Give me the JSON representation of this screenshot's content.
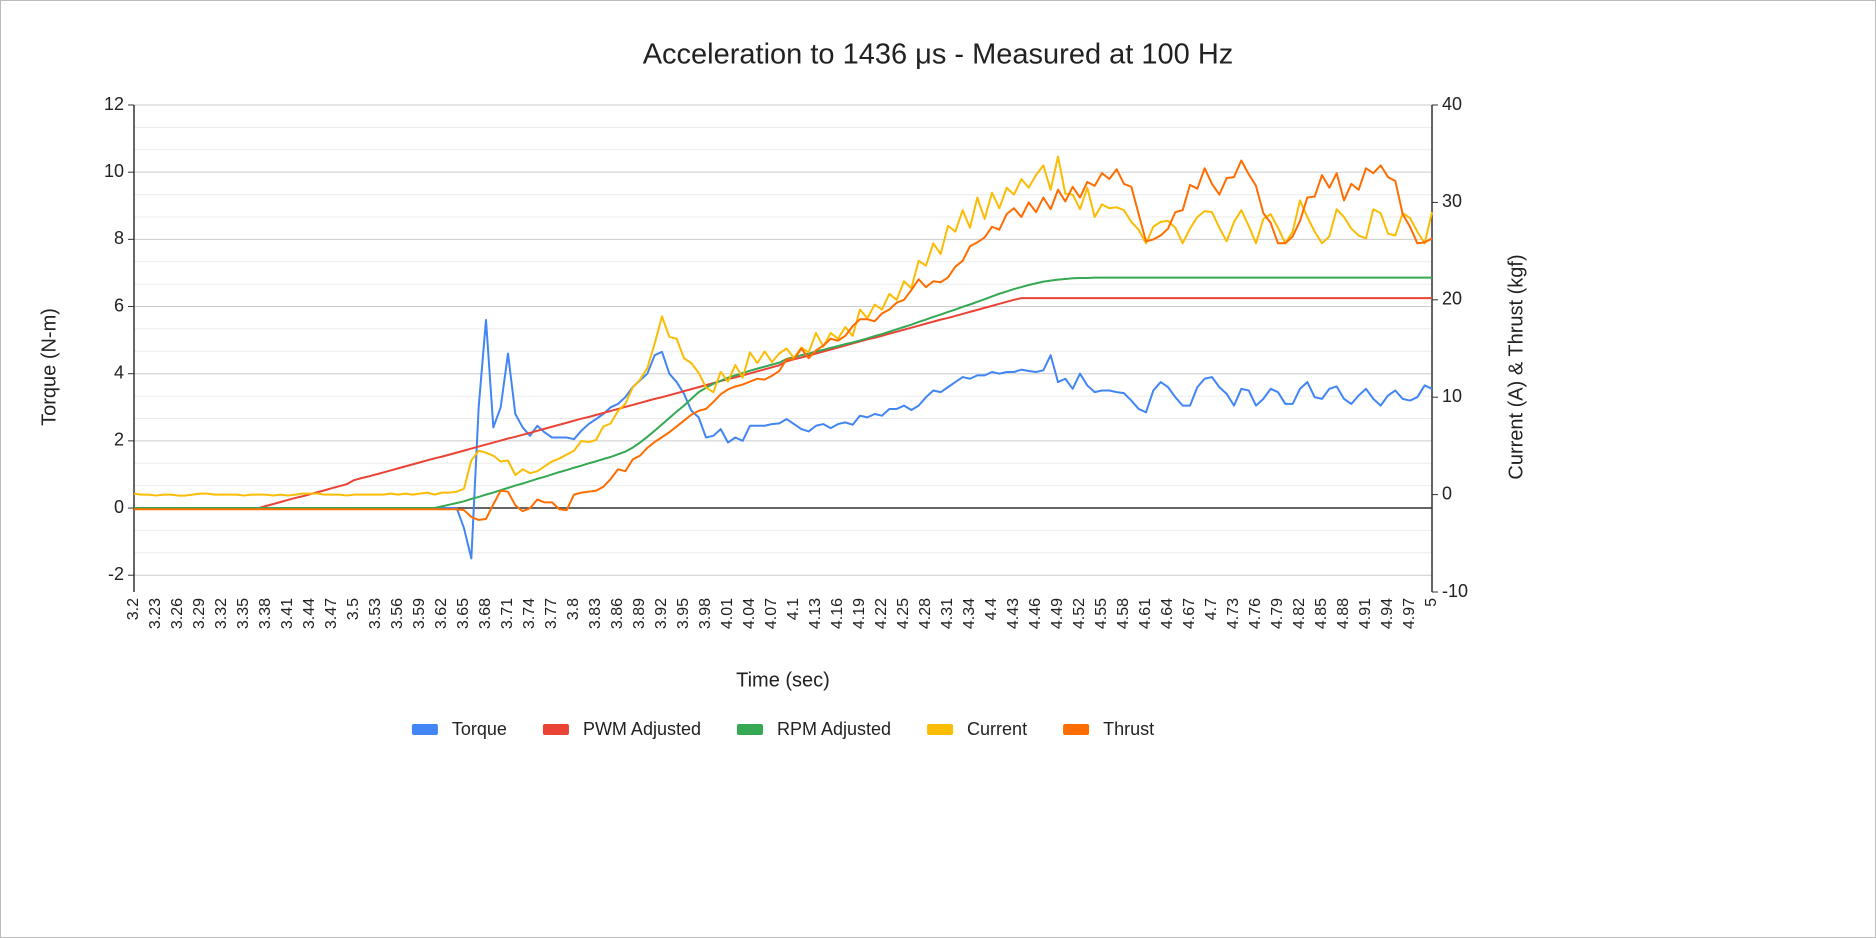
{
  "chart_data": {
    "type": "line",
    "title": "Acceleration to 1436 μs - Measured at 100 Hz",
    "x_label": "Time (sec)",
    "y_label": "Torque (N-m)",
    "y2_label": "Current (A) & Thrust (kgf)",
    "categories": [
      "3.2",
      null,
      null,
      "3.23",
      null,
      null,
      "3.26",
      null,
      null,
      "3.29",
      null,
      null,
      "3.32",
      null,
      null,
      "3.35",
      null,
      null,
      "3.38",
      null,
      null,
      "3.41",
      null,
      null,
      "3.44",
      null,
      null,
      "3.47",
      null,
      null,
      "3.5",
      null,
      null,
      "3.53",
      null,
      null,
      "3.56",
      null,
      null,
      "3.59",
      null,
      null,
      "3.62",
      null,
      null,
      "3.65",
      null,
      null,
      "3.68",
      null,
      null,
      "3.71",
      null,
      null,
      "3.74",
      null,
      null,
      "3.77",
      null,
      null,
      "3.8",
      null,
      null,
      "3.83",
      null,
      null,
      "3.86",
      null,
      null,
      "3.89",
      null,
      null,
      "3.92",
      null,
      null,
      "3.95",
      null,
      null,
      "3.98",
      null,
      null,
      "4.01",
      null,
      null,
      "4.04",
      null,
      null,
      "4.07",
      null,
      null,
      "4.1",
      null,
      null,
      "4.13",
      null,
      null,
      "4.16",
      null,
      null,
      "4.19",
      null,
      null,
      "4.22",
      null,
      null,
      "4.25",
      null,
      null,
      "4.28",
      null,
      null,
      "4.31",
      null,
      null,
      "4.34",
      null,
      null,
      "4.4",
      null,
      null,
      "4.43",
      null,
      null,
      "4.46",
      null,
      null,
      "4.49",
      null,
      null,
      "4.52",
      null,
      null,
      "4.55",
      null,
      null,
      "4.58",
      null,
      null,
      "4.61",
      null,
      null,
      "4.64",
      null,
      null,
      "4.67",
      null,
      null,
      "4.7",
      null,
      null,
      "4.73",
      null,
      null,
      "4.76",
      null,
      null,
      "4.79",
      null,
      null,
      "4.82",
      null,
      null,
      "4.85",
      null,
      null,
      "4.88",
      null,
      null,
      "4.91",
      null,
      null,
      "4.94",
      null,
      null,
      "4.97",
      null,
      null,
      "5"
    ],
    "ylim": [
      -2.5,
      12
    ],
    "yticks": [
      -2,
      0,
      2,
      4,
      6,
      8,
      10,
      12
    ],
    "y2lim": [
      -10,
      40
    ],
    "y2ticks": [
      -10,
      0,
      10,
      20,
      30,
      40
    ],
    "grid": true,
    "legend": "bottom",
    "series": [
      {
        "name": "Torque",
        "color": "#4285f4",
        "values": [
          0,
          0,
          0,
          0,
          0,
          0,
          0,
          0,
          0,
          0,
          0,
          0,
          0,
          0,
          0,
          0,
          0,
          0,
          0,
          0,
          0,
          0,
          0,
          0,
          0,
          0,
          0,
          0,
          0,
          0,
          0,
          0,
          0,
          0,
          0,
          0,
          0,
          0,
          0,
          0,
          0,
          0,
          0,
          0,
          0,
          -0.6,
          -1.5,
          3,
          5.6,
          2.4,
          3,
          4.6,
          2.8,
          2.4,
          2.15,
          2.45,
          2.25,
          2.1,
          2.1,
          2.1,
          2.05,
          2.3,
          2.5,
          2.65,
          2.8,
          3,
          3.1,
          3.3,
          3.6,
          3.8,
          4,
          4.55,
          4.65,
          4,
          3.75,
          3.4,
          2.9,
          2.7,
          2.1,
          2.15,
          2.35,
          1.95,
          2.1,
          2,
          2.45,
          2.45,
          2.45,
          2.5,
          2.52,
          2.65,
          2.5,
          2.35,
          2.28,
          2.45,
          2.5,
          2.38,
          2.5,
          2.55,
          2.48,
          2.75,
          2.7,
          2.8,
          2.75,
          2.95,
          2.95,
          3.05,
          2.92,
          3.05,
          3.3,
          3.5,
          3.45,
          3.6,
          3.75,
          3.9,
          3.85,
          3.95,
          3.95,
          4.05,
          4,
          4.05,
          4.05,
          4.12,
          4.08,
          4.05,
          4.1,
          4.55,
          3.75,
          3.85,
          3.55,
          4,
          3.65,
          3.45,
          3.5,
          3.5,
          3.45,
          3.42,
          3.2,
          2.95,
          2.85,
          3.5,
          3.75,
          3.6,
          3.3,
          3.05,
          3.05,
          3.6,
          3.85,
          3.9,
          3.6,
          3.4,
          3.05,
          3.55,
          3.5,
          3.05,
          3.25,
          3.55,
          3.45,
          3.1,
          3.1,
          3.55,
          3.75,
          3.3,
          3.25,
          3.55,
          3.62,
          3.25,
          3.1,
          3.35,
          3.55,
          3.25,
          3.05,
          3.35,
          3.5,
          3.25,
          3.2,
          3.3,
          3.65,
          3.55
        ]
      },
      {
        "name": "PWM Adjusted",
        "color": "#ea4335",
        "values": [
          0,
          0,
          0,
          0,
          0,
          0,
          0,
          0,
          0,
          0,
          0,
          0,
          0,
          0,
          0,
          0,
          0,
          0,
          0.06,
          0.12,
          0.18,
          0.24,
          0.3,
          0.35,
          0.41,
          0.47,
          0.53,
          0.59,
          0.65,
          0.71,
          0.83,
          0.89,
          0.94,
          1,
          1.06,
          1.12,
          1.18,
          1.24,
          1.3,
          1.36,
          1.42,
          1.48,
          1.53,
          1.59,
          1.65,
          1.71,
          1.77,
          1.83,
          1.89,
          1.95,
          2.01,
          2.07,
          2.12,
          2.18,
          2.24,
          2.3,
          2.36,
          2.42,
          2.48,
          2.54,
          2.6,
          2.66,
          2.71,
          2.77,
          2.83,
          2.89,
          2.95,
          3.01,
          3.07,
          3.13,
          3.19,
          3.25,
          3.3,
          3.36,
          3.42,
          3.48,
          3.54,
          3.6,
          3.66,
          3.72,
          3.78,
          3.84,
          3.89,
          3.95,
          4.01,
          4.07,
          4.13,
          4.19,
          4.25,
          4.37,
          4.43,
          4.48,
          4.54,
          4.6,
          4.66,
          4.72,
          4.78,
          4.84,
          4.9,
          4.96,
          5.02,
          5.07,
          5.13,
          5.19,
          5.25,
          5.31,
          5.37,
          5.43,
          5.49,
          5.55,
          5.61,
          5.66,
          5.72,
          5.78,
          5.84,
          5.9,
          5.96,
          6.02,
          6.08,
          6.14,
          6.2,
          6.25,
          6.25,
          6.25,
          6.25,
          6.25,
          6.25,
          6.25,
          6.25,
          6.25,
          6.25,
          6.25,
          6.25,
          6.25,
          6.25,
          6.25,
          6.25,
          6.25,
          6.25,
          6.25,
          6.25,
          6.25,
          6.25,
          6.25,
          6.25,
          6.25,
          6.25,
          6.25,
          6.25,
          6.25,
          6.25,
          6.25,
          6.25,
          6.25,
          6.25,
          6.25,
          6.25,
          6.25,
          6.25,
          6.25,
          6.25,
          6.25,
          6.25,
          6.25,
          6.25,
          6.25,
          6.25,
          6.25,
          6.25,
          6.25,
          6.25,
          6.25,
          6.25,
          6.25,
          6.25,
          6.25,
          6.25,
          6.25
        ]
      },
      {
        "name": "RPM Adjusted",
        "color": "#34a853",
        "values": [
          0,
          0,
          0,
          0,
          0,
          0,
          0,
          0,
          0,
          0,
          0,
          0,
          0,
          0,
          0,
          0,
          0,
          0,
          0,
          0,
          0,
          0,
          0,
          0,
          0,
          0,
          0,
          0,
          0,
          0,
          0,
          0,
          0,
          0,
          0,
          0,
          0,
          0,
          0,
          0,
          0,
          0,
          0.05,
          0.1,
          0.15,
          0.2,
          0.27,
          0.33,
          0.4,
          0.46,
          0.53,
          0.6,
          0.67,
          0.73,
          0.8,
          0.87,
          0.93,
          1,
          1.07,
          1.13,
          1.2,
          1.26,
          1.33,
          1.39,
          1.46,
          1.52,
          1.6,
          1.68,
          1.8,
          1.95,
          2.12,
          2.3,
          2.49,
          2.68,
          2.87,
          3.05,
          3.25,
          3.45,
          3.58,
          3.7,
          3.79,
          3.88,
          3.95,
          4.02,
          4.09,
          4.15,
          4.21,
          4.27,
          4.33,
          4.44,
          4.49,
          4.55,
          4.6,
          4.66,
          4.71,
          4.77,
          4.82,
          4.88,
          4.93,
          4.99,
          5.05,
          5.12,
          5.18,
          5.25,
          5.32,
          5.39,
          5.46,
          5.54,
          5.61,
          5.69,
          5.76,
          5.84,
          5.91,
          5.99,
          6.06,
          6.14,
          6.22,
          6.3,
          6.38,
          6.45,
          6.52,
          6.58,
          6.64,
          6.69,
          6.74,
          6.77,
          6.8,
          6.82,
          6.84,
          6.85,
          6.85,
          6.86,
          6.86,
          6.86,
          6.86,
          6.86,
          6.86,
          6.86,
          6.86,
          6.86,
          6.86,
          6.86,
          6.86,
          6.86,
          6.86,
          6.86,
          6.86,
          6.86,
          6.86,
          6.86,
          6.86,
          6.86,
          6.86,
          6.86,
          6.86,
          6.86,
          6.86,
          6.86,
          6.86,
          6.86,
          6.86,
          6.86,
          6.86,
          6.86,
          6.86,
          6.86,
          6.86,
          6.86,
          6.86,
          6.86,
          6.86,
          6.86,
          6.86,
          6.86,
          6.86,
          6.86,
          6.86,
          6.86
        ]
      },
      {
        "name": "Current",
        "color": "#fbbc04",
        "axis": "y2",
        "values": [
          0.1,
          0,
          0,
          -0.1,
          0,
          0,
          -0.1,
          -0.1,
          0,
          0.1,
          0.1,
          0,
          0,
          0,
          0,
          -0.1,
          0,
          0,
          0,
          -0.1,
          0,
          -0.1,
          0,
          0.1,
          0.1,
          0.1,
          0,
          0,
          0,
          -0.1,
          0,
          0,
          0,
          0,
          0,
          0.1,
          0,
          0.1,
          0,
          0.1,
          0.2,
          0,
          0.2,
          0.2,
          0.3,
          0.6,
          3.5,
          4.5,
          4.3,
          4,
          3.4,
          3.5,
          2,
          2.6,
          2.2,
          2.4,
          2.9,
          3.4,
          3.7,
          4.1,
          4.5,
          5.5,
          5.4,
          5.6,
          7,
          7.3,
          8.6,
          9.3,
          11,
          11.8,
          13,
          15.5,
          18.3,
          16.2,
          16,
          14,
          13.5,
          12.5,
          11,
          10.5,
          12.6,
          11.6,
          13.3,
          12,
          14.6,
          13.5,
          14.7,
          13.6,
          14.5,
          15,
          14,
          15.1,
          14.6,
          16.6,
          15.2,
          16.6,
          16,
          17.2,
          16.3,
          19,
          18.1,
          19.5,
          19,
          20.6,
          20,
          21.9,
          21.2,
          24,
          23.5,
          25.8,
          24.7,
          27.6,
          27,
          29.2,
          27.4,
          30.5,
          28.3,
          31,
          29.4,
          31.5,
          30.8,
          32.4,
          31.5,
          32.8,
          33.8,
          31.3,
          34.7,
          30.9,
          30.8,
          29.3,
          31.5,
          28.5,
          29.8,
          29.4,
          29.5,
          29.2,
          28,
          27.2,
          25.8,
          27.5,
          28,
          28.1,
          27.4,
          25.8,
          27.3,
          28.5,
          29.1,
          29,
          27.4,
          26,
          28,
          29.2,
          27.6,
          25.8,
          28.3,
          28.8,
          27.4,
          25.8,
          27,
          30.2,
          28.5,
          27,
          25.8,
          26.5,
          29.3,
          28.5,
          27.3,
          26.6,
          26.3,
          29.3,
          28.9,
          26.8,
          26.6,
          28.9,
          28.4,
          27,
          25.8,
          29
        ]
      },
      {
        "name": "Thrust",
        "color": "#ff6d01",
        "axis": "y2",
        "values": [
          -1.5,
          -1.5,
          -1.5,
          -1.5,
          -1.5,
          -1.5,
          -1.5,
          -1.5,
          -1.5,
          -1.5,
          -1.5,
          -1.5,
          -1.5,
          -1.5,
          -1.5,
          -1.5,
          -1.5,
          -1.5,
          -1.5,
          -1.5,
          -1.5,
          -1.5,
          -1.5,
          -1.5,
          -1.5,
          -1.5,
          -1.5,
          -1.5,
          -1.5,
          -1.5,
          -1.5,
          -1.5,
          -1.5,
          -1.5,
          -1.5,
          -1.5,
          -1.5,
          -1.5,
          -1.5,
          -1.5,
          -1.5,
          -1.5,
          -1.5,
          -1.5,
          -1.5,
          -1.6,
          -2.3,
          -2.6,
          -2.5,
          -1,
          0.4,
          0.3,
          -1.1,
          -1.7,
          -1.4,
          -0.5,
          -0.8,
          -0.8,
          -1.5,
          -1.6,
          0,
          0.2,
          0.3,
          0.4,
          0.8,
          1.6,
          2.6,
          2.4,
          3.6,
          4,
          4.8,
          5.4,
          5.9,
          6.4,
          7,
          7.6,
          8.2,
          8.6,
          8.8,
          9.5,
          10.3,
          10.8,
          11.1,
          11.3,
          11.6,
          11.9,
          11.8,
          12.2,
          12.7,
          13.9,
          13.9,
          15,
          14,
          14.8,
          15.3,
          16,
          15.8,
          16.3,
          17.3,
          18,
          18,
          17.8,
          18.6,
          19,
          19.7,
          20,
          21,
          22.1,
          21.3,
          21.9,
          21.8,
          22.3,
          23.4,
          24,
          25.5,
          25.9,
          26.4,
          27.5,
          27.2,
          28.8,
          29.4,
          28.5,
          30,
          29,
          30.5,
          29.3,
          31.3,
          30.1,
          31.6,
          30.5,
          32.1,
          31.7,
          33,
          32.4,
          33.4,
          31.9,
          31.6,
          28.8,
          26,
          26.2,
          26.6,
          27.3,
          29,
          29.2,
          31.8,
          31.4,
          33.5,
          31.9,
          30.8,
          32.5,
          32.6,
          34.3,
          32.9,
          31.7,
          28.9,
          27.9,
          25.8,
          25.8,
          26.5,
          28.1,
          30.5,
          30.6,
          32.8,
          31.5,
          33,
          30.2,
          31.9,
          31.3,
          33.5,
          33,
          33.8,
          32.6,
          32.2,
          28.8,
          27.5,
          25.8,
          25.9,
          26.3
        ]
      }
    ]
  }
}
